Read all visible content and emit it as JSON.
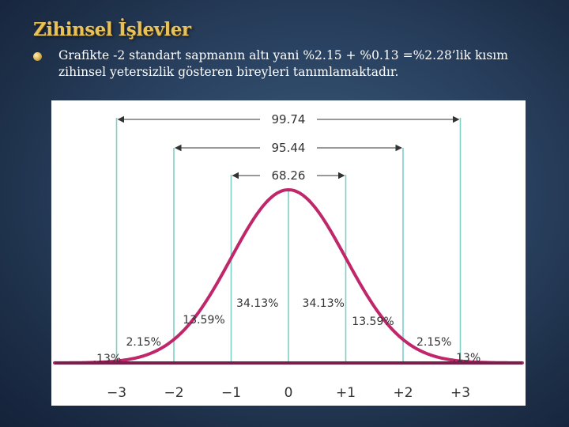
{
  "slide": {
    "title": "Zihinsel İşlevler",
    "bullet_text": "Grafikte -2 standart sapmanın altı yani %2.15 + %0.13 =%2.28’lik kısım zihinsel yetersizlik gösteren bireyleri tanımlamaktadır."
  },
  "chart_data": {
    "type": "area",
    "description_free": true,
    "x_ticks": [
      "−3",
      "−2",
      "−1",
      "0",
      "+1",
      "+2",
      "+3"
    ],
    "range_labels": [
      {
        "label": "99.74",
        "from": -3,
        "to": 3
      },
      {
        "label": "95.44",
        "from": -2,
        "to": 2
      },
      {
        "label": "68.26",
        "from": -1,
        "to": 1
      }
    ],
    "region_labels": [
      {
        "label": ".13%",
        "region": "below -3"
      },
      {
        "label": "2.15%",
        "region": "-3 to -2"
      },
      {
        "label": "13.59%",
        "region": "-2 to -1"
      },
      {
        "label": "34.13%",
        "region": "-1 to 0"
      },
      {
        "label": "34.13%",
        "region": "0 to +1"
      },
      {
        "label": "13.59%",
        "region": "+1 to +2"
      },
      {
        "label": "2.15%",
        "region": "+2 to +3"
      },
      {
        "label": ".13%",
        "region": "above +3"
      }
    ],
    "curve_color": "#c0266a",
    "line_color": "#7fcfc6",
    "axis_color": "#7a1f4a"
  }
}
